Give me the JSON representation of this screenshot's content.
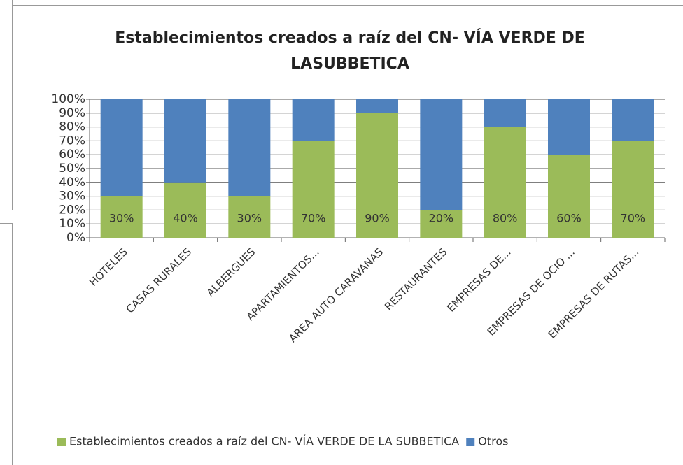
{
  "chart_data": {
    "type": "bar",
    "stacked": true,
    "title": [
      "Establecimientos creados a raíz del CN- VÍA VERDE DE",
      "LASUBBETICA"
    ],
    "categories": [
      "HOTELES",
      "CASAS RURALES",
      "ALBERGUES",
      "APARTAMIENTOS...",
      "AREA AUTO CARAVANAS",
      "RESTAURANTES",
      "EMPRESAS DE...",
      "EMPRESAS DE OCIO ...",
      "EMPRESAS DE RUTAS..."
    ],
    "series": [
      {
        "name": "Establecimientos creados a raíz del CN- VÍA VERDE DE LA SUBBETICA",
        "color": "#9bbb59",
        "values": [
          30,
          40,
          30,
          70,
          90,
          20,
          80,
          60,
          70
        ],
        "value_labels": [
          "30%",
          "40%",
          "30%",
          "70%",
          "90%",
          "20%",
          "80%",
          "60%",
          "70%"
        ]
      },
      {
        "name": "Otros",
        "color": "#4f81bd",
        "values": [
          70,
          60,
          70,
          30,
          10,
          80,
          20,
          40,
          30
        ]
      }
    ],
    "ylim": [
      0,
      100
    ],
    "yticks": [
      {
        "value": 0,
        "label": "0%"
      },
      {
        "value": 10,
        "label": "10%"
      },
      {
        "value": 20,
        "label": "20%"
      },
      {
        "value": 30,
        "label": "30%"
      },
      {
        "value": 40,
        "label": "40%"
      },
      {
        "value": 50,
        "label": "50%"
      },
      {
        "value": 60,
        "label": "60%"
      },
      {
        "value": 70,
        "label": "70%"
      },
      {
        "value": 80,
        "label": "80%"
      },
      {
        "value": 90,
        "label": "90%"
      },
      {
        "value": 100,
        "label": "100%"
      }
    ],
    "grid": true,
    "legend": "bottom"
  }
}
